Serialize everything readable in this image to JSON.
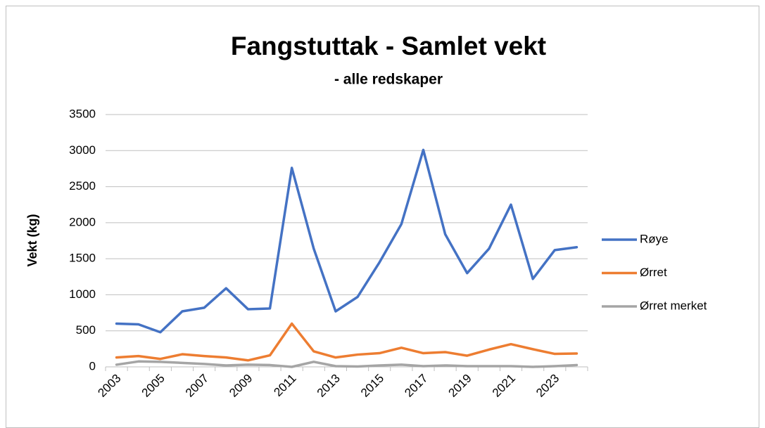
{
  "chart_data": {
    "type": "line",
    "title": "Fangstuttak - Samlet vekt",
    "subtitle": "- alle redskaper",
    "y_label": "Vekt (kg)",
    "categories": [
      "2003",
      null,
      "2005",
      null,
      "2007",
      null,
      "2009",
      null,
      "2011",
      null,
      "2013",
      null,
      "2015",
      null,
      "2017",
      null,
      "2019",
      null,
      "2021",
      null,
      "2023",
      null
    ],
    "series": [
      {
        "name": "Røye",
        "color": "#4472c4",
        "values": [
          600,
          590,
          480,
          770,
          820,
          1090,
          800,
          810,
          2760,
          1640,
          770,
          970,
          1450,
          1980,
          3010,
          1840,
          1300,
          1640,
          2250,
          1220,
          1620,
          1660
        ]
      },
      {
        "name": "Ørret",
        "color": "#ed7d31",
        "values": [
          130,
          150,
          110,
          175,
          150,
          130,
          90,
          160,
          600,
          215,
          130,
          170,
          190,
          265,
          190,
          205,
          155,
          240,
          315,
          245,
          180,
          185
        ]
      },
      {
        "name": "Ørret merket",
        "color": "#a5a5a5",
        "values": [
          30,
          75,
          70,
          55,
          40,
          20,
          30,
          25,
          0,
          70,
          10,
          5,
          20,
          30,
          10,
          20,
          10,
          10,
          10,
          0,
          10,
          25
        ]
      }
    ],
    "ylim": [
      0,
      3500
    ],
    "yticks": [
      0,
      500,
      1000,
      1500,
      2000,
      2500,
      3000,
      3500
    ],
    "grid": true,
    "legend": "right"
  }
}
